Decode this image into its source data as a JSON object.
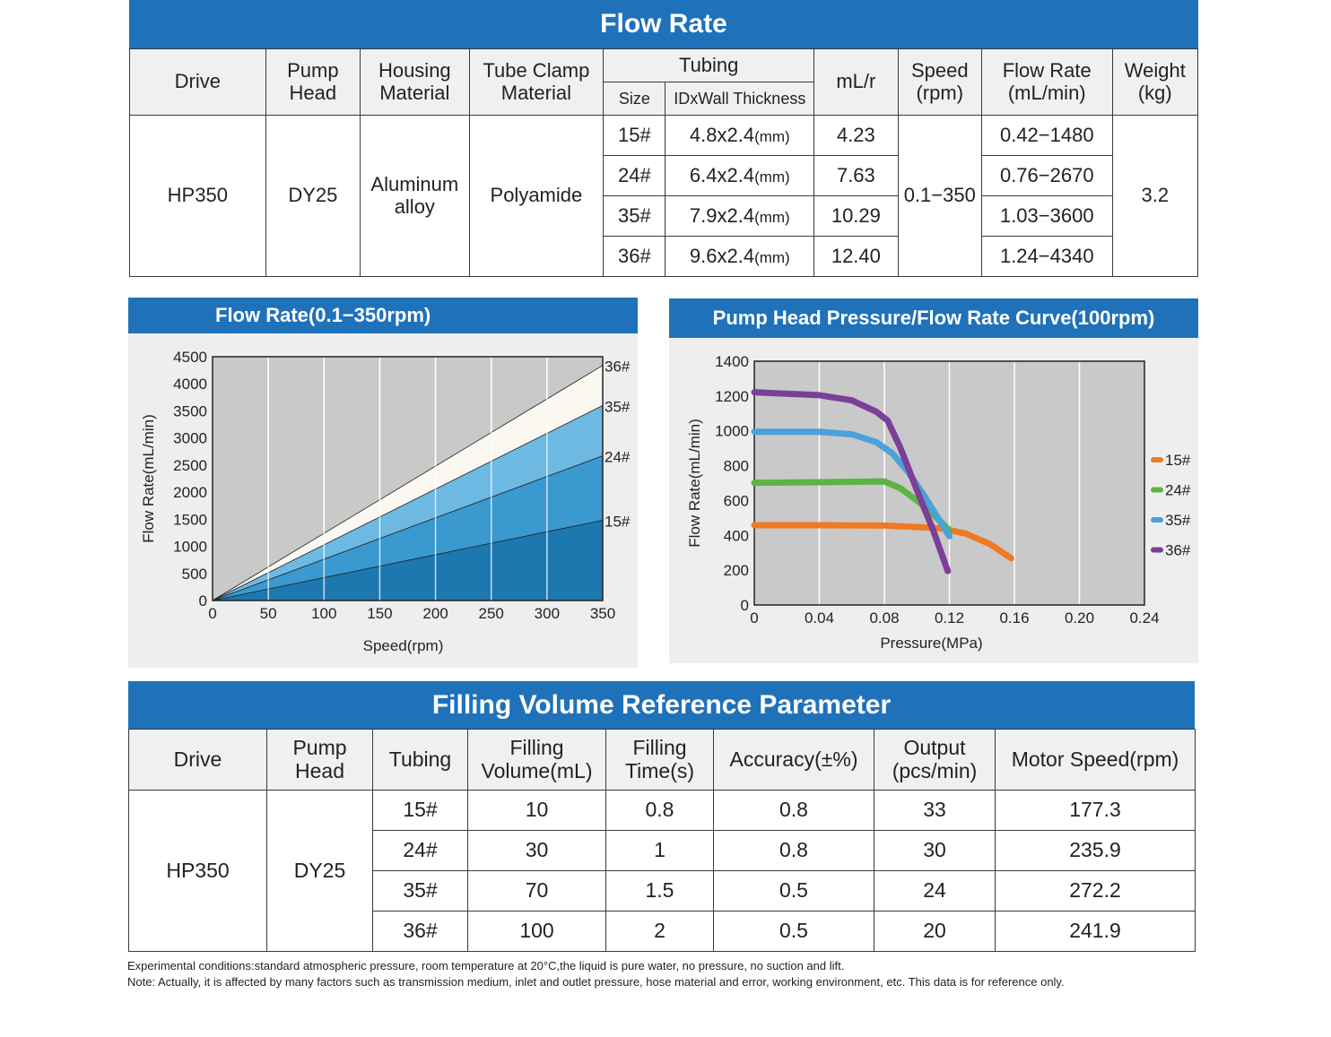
{
  "flow_rate_table": {
    "title": "Flow Rate",
    "headers": {
      "drive": "Drive",
      "pump_head": "Pump Head",
      "housing": "Housing Material",
      "tube_clamp": "Tube Clamp Material",
      "tubing": "Tubing",
      "size": "Size",
      "id_wall": "IDxWall Thickness",
      "ml_r": "mL/r",
      "speed": "Speed (rpm)",
      "flow_rate": "Flow Rate (mL/min)",
      "weight": "Weight (kg)"
    },
    "drive": "HP350",
    "pump_head": "DY25",
    "housing": "Aluminum alloy",
    "tube_clamp": "Polyamide",
    "speed": "0.1−350",
    "weight": "3.2",
    "unit": "(mm)",
    "rows": [
      {
        "size": "15#",
        "dim": "4.8x2.4",
        "ml_r": "4.23",
        "flow": "0.42−1480"
      },
      {
        "size": "24#",
        "dim": "6.4x2.4",
        "ml_r": "7.63",
        "flow": "0.76−2670"
      },
      {
        "size": "35#",
        "dim": "7.9x2.4",
        "ml_r": "10.29",
        "flow": "1.03−3600"
      },
      {
        "size": "36#",
        "dim": "9.6x2.4",
        "ml_r": "12.40",
        "flow": "1.24−4340"
      }
    ]
  },
  "chart_data": [
    {
      "type": "area",
      "title": "Flow Rate(0.1−350rpm)",
      "xlabel": "Speed(rpm)",
      "ylabel": "Flow Rate(mL/min)",
      "xlim": [
        0,
        350
      ],
      "ylim": [
        0,
        4500
      ],
      "x_ticks": [
        "0",
        "50",
        "100",
        "150",
        "200",
        "250",
        "300",
        "350"
      ],
      "y_ticks": [
        "0",
        "500",
        "1000",
        "1500",
        "2000",
        "2500",
        "3000",
        "3500",
        "4000",
        "4500"
      ],
      "grid": "vertical",
      "series": [
        {
          "name": "36#",
          "x": [
            0,
            350
          ],
          "values": [
            0,
            4340
          ],
          "color": "#fbf8f2"
        },
        {
          "name": "35#",
          "x": [
            0,
            350
          ],
          "values": [
            0,
            3600
          ],
          "color": "#6db9e2"
        },
        {
          "name": "24#",
          "x": [
            0,
            350
          ],
          "values": [
            0,
            2670
          ],
          "color": "#3a99cf"
        },
        {
          "name": "15#",
          "x": [
            0,
            350
          ],
          "values": [
            0,
            1480
          ],
          "color": "#1e78b0"
        }
      ]
    },
    {
      "type": "line",
      "title": "Pump Head Pressure/Flow Rate Curve(100rpm)",
      "xlabel": "Pressure(MPa)",
      "ylabel": "Flow Rate(mL/min)",
      "xlim": [
        0,
        0.24
      ],
      "ylim": [
        0,
        1400
      ],
      "x_ticks": [
        "0",
        "0.04",
        "0.08",
        "0.12",
        "0.16",
        "0.20",
        "0.24"
      ],
      "y_ticks": [
        "0",
        "200",
        "400",
        "600",
        "800",
        "1000",
        "1200",
        "1400"
      ],
      "grid": "vertical",
      "legend": "right",
      "series": [
        {
          "name": "15#",
          "color": "#f07a22",
          "x": [
            0,
            0.04,
            0.08,
            0.1,
            0.115,
            0.13,
            0.145,
            0.158
          ],
          "values": [
            458,
            458,
            456,
            448,
            440,
            410,
            350,
            268
          ]
        },
        {
          "name": "24#",
          "color": "#5db343",
          "x": [
            0,
            0.04,
            0.08,
            0.09,
            0.1,
            0.11,
            0.12
          ],
          "values": [
            702,
            705,
            710,
            670,
            600,
            520,
            430
          ]
        },
        {
          "name": "35#",
          "color": "#4ba1da",
          "x": [
            0,
            0.04,
            0.06,
            0.075,
            0.085,
            0.095,
            0.105,
            0.115,
            0.12
          ],
          "values": [
            995,
            995,
            980,
            935,
            870,
            760,
            620,
            470,
            395
          ]
        },
        {
          "name": "36#",
          "color": "#7b3f97",
          "x": [
            0,
            0.04,
            0.06,
            0.075,
            0.082,
            0.09,
            0.1,
            0.11,
            0.119
          ],
          "values": [
            1222,
            1205,
            1175,
            1110,
            1060,
            900,
            660,
            430,
            195
          ]
        }
      ]
    }
  ],
  "filling_table": {
    "title": "Filling Volume Reference Parameter",
    "headers": {
      "drive": "Drive",
      "pump_head": "Pump Head",
      "tubing": "Tubing",
      "filling_volume": "Filling Volume(mL)",
      "filling_time": "Filling Time(s)",
      "accuracy": "Accuracy(±%)",
      "output": "Output (pcs/min)",
      "motor_speed": "Motor Speed(rpm)"
    },
    "drive": "HP350",
    "pump_head": "DY25",
    "rows": [
      {
        "tubing": "15#",
        "volume": "10",
        "time": "0.8",
        "accuracy": "0.8",
        "output": "33",
        "speed": "177.3"
      },
      {
        "tubing": "24#",
        "volume": "30",
        "time": "1",
        "accuracy": "0.8",
        "output": "30",
        "speed": "235.9"
      },
      {
        "tubing": "35#",
        "volume": "70",
        "time": "1.5",
        "accuracy": "0.5",
        "output": "24",
        "speed": "272.2"
      },
      {
        "tubing": "36#",
        "volume": "100",
        "time": "2",
        "accuracy": "0.5",
        "output": "20",
        "speed": "241.9"
      }
    ]
  },
  "notes": [
    "Experimental conditions:standard atmospheric pressure, room temperature at 20°C,the liquid is pure water, no pressure, no suction and lift.",
    "Note: Actually, it is affected by many factors such as transmission medium, inlet and outlet pressure, hose material and error, working environment, etc. This data is for reference only."
  ]
}
